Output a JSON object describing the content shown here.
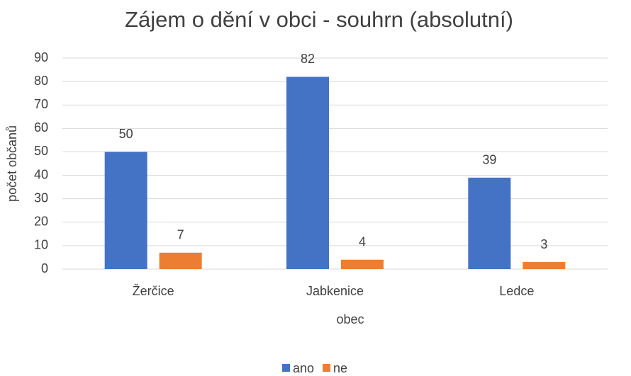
{
  "chart_data": {
    "type": "bar",
    "title": "Zájem o dění v obci - souhrn (absolutní)",
    "x_label": "obec",
    "y_label": "počet občanů",
    "categories": [
      "Žerčice",
      "Jabkenice",
      "Ledce"
    ],
    "series": [
      {
        "name": "ano",
        "color": "#4472c4",
        "values": [
          50,
          82,
          39
        ]
      },
      {
        "name": "ne",
        "color": "#ed7d31",
        "values": [
          7,
          4,
          3
        ]
      }
    ],
    "ylim": [
      0,
      90
    ],
    "yticks": [
      0,
      10,
      20,
      30,
      40,
      50,
      60,
      70,
      80,
      90
    ],
    "grid": true,
    "legend": "bottom"
  }
}
